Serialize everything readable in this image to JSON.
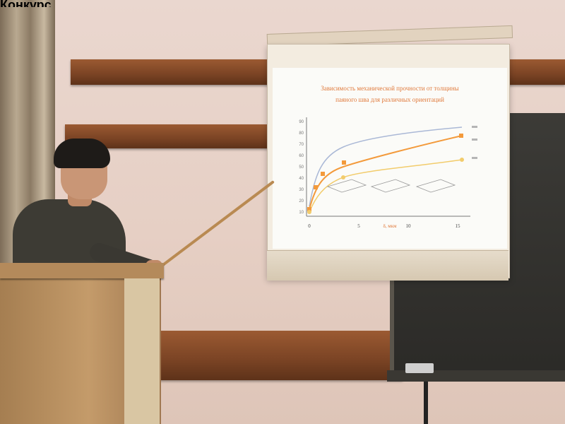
{
  "caption": "Конкурс",
  "slide": {
    "title_line1": "Зависимость механической прочности от толщины",
    "title_line2": "паяного шва для различных ориентаций",
    "x_label": "δ, мкм",
    "x_ticks": [
      "0",
      "5",
      "10",
      "15"
    ],
    "y_ticks": [
      "90",
      "80",
      "70",
      "60",
      "50",
      "40",
      "30",
      "20",
      "10"
    ],
    "colors": {
      "title": "#e07a3c",
      "series_top": "#aab8d6",
      "series_mid": "#f39a3b",
      "series_low": "#f2cc6c"
    }
  }
}
